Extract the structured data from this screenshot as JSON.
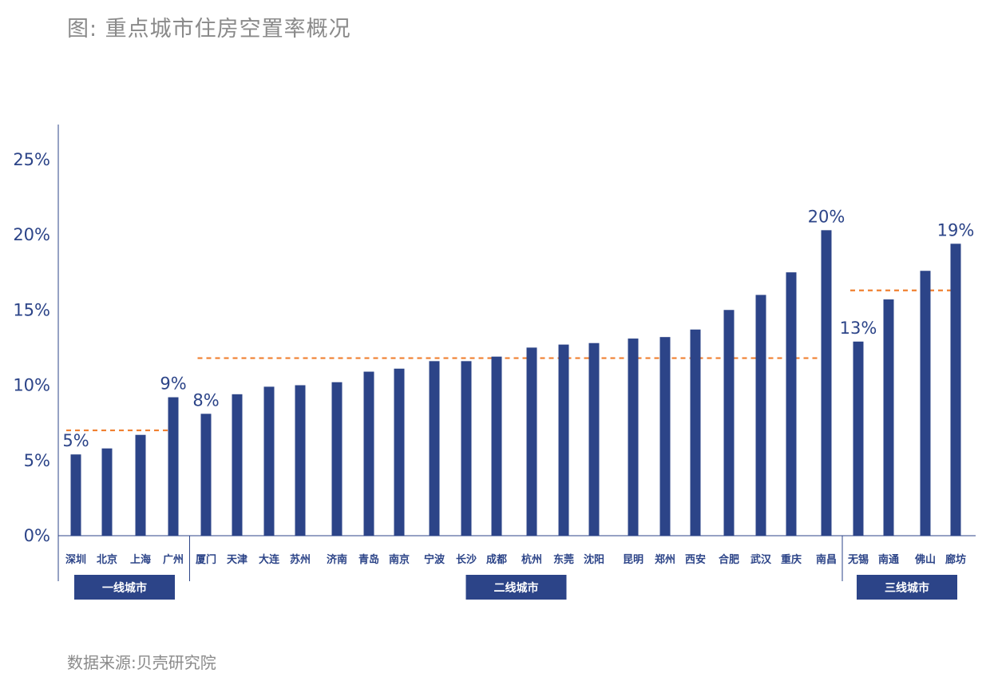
{
  "title": "图: 重点城市住房空置率概况",
  "source": "数据来源:贝壳研究院",
  "colors": {
    "bar": "#2c4488",
    "avg_line": "#f08030",
    "axis": "#2c4488",
    "text": "#2c4488",
    "muted": "#8a8a8a"
  },
  "chart_data": {
    "type": "bar",
    "title": "图: 重点城市住房空置率概况",
    "xlabel": "",
    "ylabel": "",
    "ylim": [
      0,
      25
    ],
    "yticks": [
      "0%",
      "5%",
      "10%",
      "15%",
      "20%",
      "25%"
    ],
    "grid": false,
    "categories": [
      "深圳",
      "北京",
      "上海",
      "广州",
      "厦门",
      "天津",
      "大连",
      "苏州",
      "济南",
      "青岛",
      "南京",
      "宁波",
      "长沙",
      "成都",
      "杭州",
      "东莞",
      "沈阳",
      "昆明",
      "郑州",
      "西安",
      "合肥",
      "武汉",
      "重庆",
      "南昌",
      "无锡",
      "南通",
      "佛山",
      "廊坊"
    ],
    "values": [
      5.4,
      5.8,
      6.7,
      9.2,
      8.1,
      9.4,
      9.9,
      10.0,
      10.2,
      10.9,
      11.1,
      11.6,
      11.6,
      11.9,
      12.5,
      12.7,
      12.8,
      13.1,
      13.2,
      13.7,
      15.0,
      16.0,
      17.5,
      20.3,
      12.9,
      15.7,
      17.6,
      19.4
    ],
    "data_labels": [
      {
        "index": 0,
        "text": "5%"
      },
      {
        "index": 3,
        "text": "9%"
      },
      {
        "index": 4,
        "text": "8%"
      },
      {
        "index": 23,
        "text": "20%"
      },
      {
        "index": 24,
        "text": "13%"
      },
      {
        "index": 27,
        "text": "19%"
      }
    ],
    "groups": [
      {
        "name": "一线城市",
        "start": 0,
        "end": 3,
        "average": 7.0
      },
      {
        "name": "二线城市",
        "start": 4,
        "end": 23,
        "average": 11.8
      },
      {
        "name": "三线城市",
        "start": 24,
        "end": 27,
        "average": 16.3
      }
    ]
  }
}
